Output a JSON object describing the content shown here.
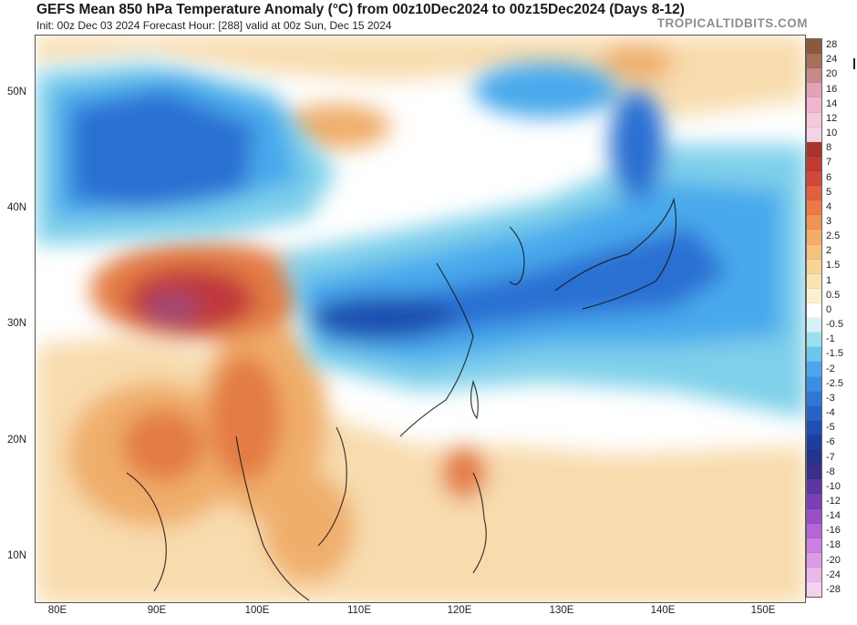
{
  "header": {
    "title": "GEFS Mean 850 hPa Temperature Anomaly (°C) from 00z10Dec2024 to 00z15Dec2024 (Days 8-12)",
    "subtitle": "Init: 00z Dec 03 2024   Forecast Hour: [288]   valid at 00z Sun, Dec 15 2024",
    "brand": "TROPICALTIDBITS.COM"
  },
  "map": {
    "region": "East Asia",
    "lat_labels": [
      "50N",
      "40N",
      "30N",
      "20N",
      "10N"
    ],
    "lon_labels": [
      "80E",
      "90E",
      "100E",
      "110E",
      "120E",
      "130E",
      "140E",
      "150E"
    ],
    "colors": {
      "ocean_neutral": "#ffffff",
      "warm_light": "#f8dcae",
      "warm_mid": "#f0ae6c",
      "warm_strong": "#e37c45",
      "warm_hot": "#c0393b",
      "warm_peak": "#a04a72",
      "cool_light": "#7fd0ea",
      "cool_mid": "#4aa9ec",
      "cool_strong": "#2b6fd2",
      "cool_deep": "#1f4fb0"
    }
  },
  "colorbar": {
    "labels": [
      "28",
      "24",
      "20",
      "16",
      "14",
      "12",
      "10",
      "8",
      "7",
      "6",
      "5",
      "4",
      "3",
      "2.5",
      "2",
      "1.5",
      "1",
      "0.5",
      "0",
      "-0.5",
      "-1",
      "-1.5",
      "-2",
      "-2.5",
      "-3",
      "-4",
      "-5",
      "-6",
      "-7",
      "-8",
      "-10",
      "-12",
      "-14",
      "-16",
      "-18",
      "-20",
      "-24",
      "-28"
    ],
    "colors": [
      "#8b5a3c",
      "#a86f5a",
      "#c8898a",
      "#e2a3b8",
      "#f0b6cf",
      "#f5c8dc",
      "#f3d3e4",
      "#a8342e",
      "#c23a34",
      "#d4473b",
      "#e0603f",
      "#e97a47",
      "#f09455",
      "#f3ad69",
      "#f6c27f",
      "#f8d497",
      "#fae3b4",
      "#fcefd2",
      "#ffffff",
      "#d7f2f6",
      "#9be0ef",
      "#6cc6ec",
      "#4ba6ea",
      "#3b8ee2",
      "#2f76d6",
      "#2762c4",
      "#1f4fb0",
      "#1d3f9c",
      "#25338a",
      "#3b2f8a",
      "#5a36a0",
      "#7a3fb3",
      "#9a4fc6",
      "#b565d6",
      "#cc7fe0",
      "#dd9de6",
      "#eab8ea",
      "#f3d2f0"
    ]
  }
}
